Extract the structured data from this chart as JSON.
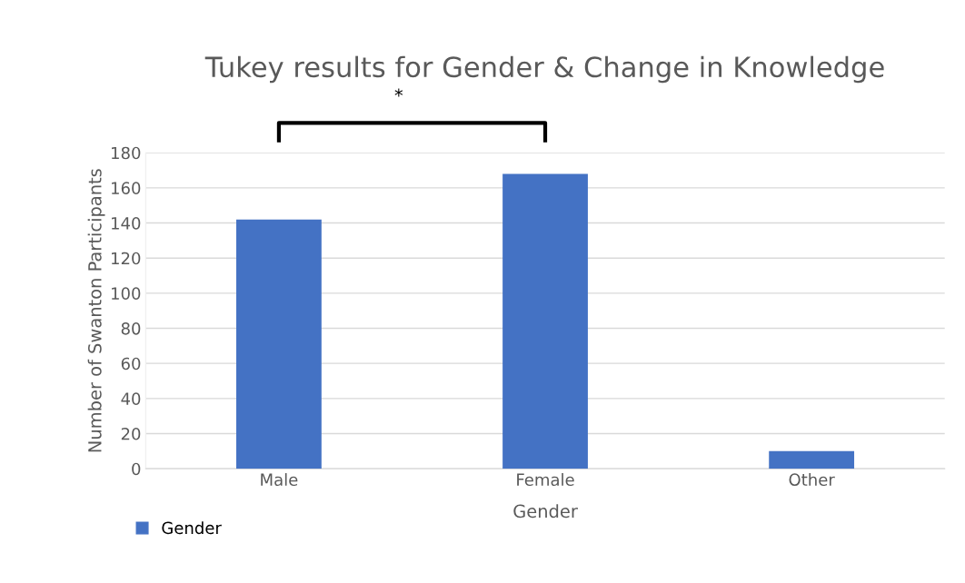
{
  "chart_data": {
    "type": "bar",
    "title": "Tukey results for Gender & Change in Knowledge",
    "xlabel": "Gender",
    "ylabel": "Number of Swanton Participants",
    "categories": [
      "Male",
      "Female",
      "Other"
    ],
    "series": [
      {
        "name": "Gender",
        "color": "#4472c4",
        "values": [
          142,
          168,
          10
        ]
      }
    ],
    "ylim": [
      0,
      180
    ],
    "yticks": [
      0,
      20,
      40,
      60,
      80,
      100,
      120,
      140,
      160,
      180
    ],
    "grid": "y",
    "legend": "bottom left",
    "annotations": [
      "*"
    ]
  }
}
